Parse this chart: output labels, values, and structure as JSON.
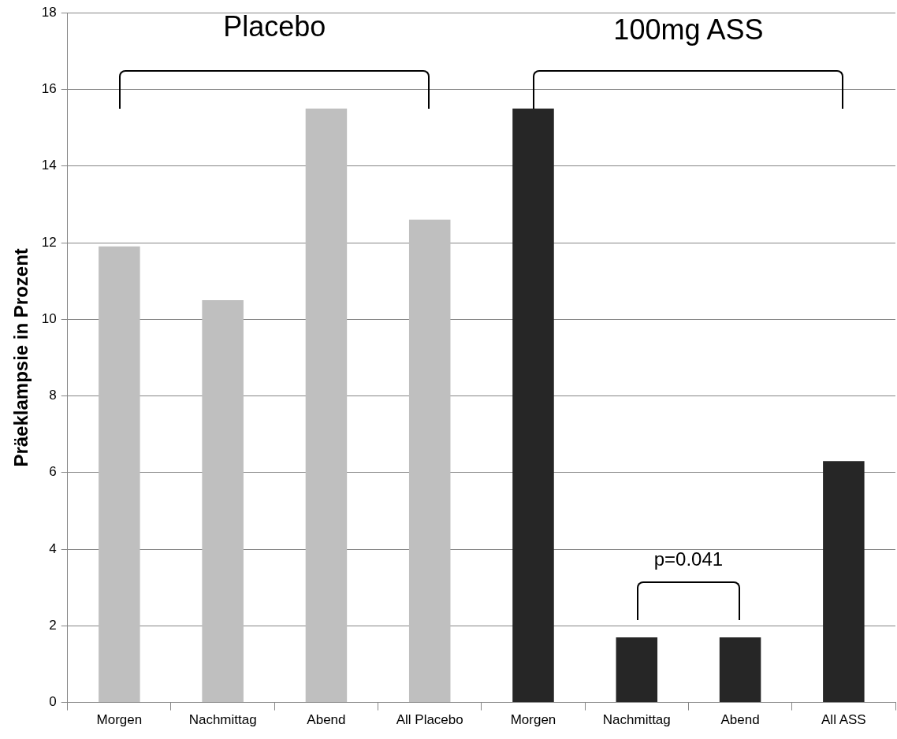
{
  "chart_data": {
    "type": "bar",
    "ylabel": "Präeklampsie in Prozent",
    "categories": [
      "Morgen",
      "Nachmittag",
      "Abend",
      "All Placebo",
      "Morgen",
      "Nachmittag",
      "Abend",
      "All ASS"
    ],
    "values": [
      11.9,
      10.5,
      15.5,
      12.6,
      15.5,
      1.7,
      1.7,
      6.3
    ],
    "colors": [
      "#bfbfbf",
      "#bfbfbf",
      "#bfbfbf",
      "#bfbfbf",
      "#262626",
      "#262626",
      "#262626",
      "#262626"
    ],
    "ylim": [
      0,
      18
    ],
    "yticks": [
      0,
      2,
      4,
      6,
      8,
      10,
      12,
      14,
      16,
      18
    ],
    "grid": "y",
    "legend": false,
    "annotations": [
      "Placebo",
      "100mg ASS",
      "p=0.041"
    ]
  }
}
